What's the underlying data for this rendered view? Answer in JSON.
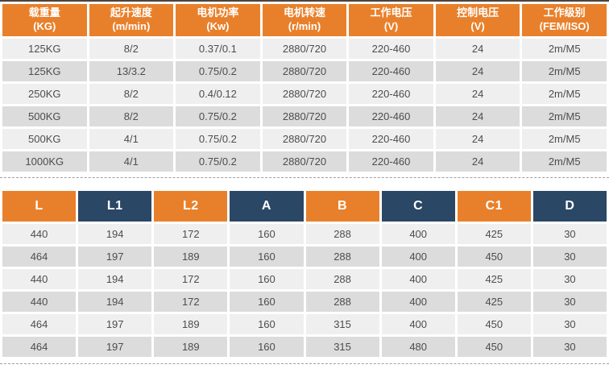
{
  "colors": {
    "orange": "#E8802B",
    "navy": "#2B4766",
    "row_light": "#EFEFEF",
    "row_dark": "#DCDCDC",
    "text": "#4D4D4D"
  },
  "spec_table": {
    "headers": [
      {
        "line1": "载重量",
        "line2": "(KG)"
      },
      {
        "line1": "起升速度",
        "line2": "(m/min)"
      },
      {
        "line1": "电机功率",
        "line2": "(Kw)"
      },
      {
        "line1": "电机转速",
        "line2": "(r/min)"
      },
      {
        "line1": "工作电压",
        "line2": "(V)"
      },
      {
        "line1": "控制电压",
        "line2": "(V)"
      },
      {
        "line1": "工作级别",
        "line2": "(FEM/ISO)"
      }
    ],
    "rows": [
      [
        "125KG",
        "8/2",
        "0.37/0.1",
        "2880/720",
        "220-460",
        "24",
        "2m/M5"
      ],
      [
        "125KG",
        "13/3.2",
        "0.75/0.2",
        "2880/720",
        "220-460",
        "24",
        "2m/M5"
      ],
      [
        "250KG",
        "8/2",
        "0.4/0.12",
        "2880/720",
        "220-460",
        "24",
        "2m/M5"
      ],
      [
        "500KG",
        "8/2",
        "0.75/0.2",
        "2880/720",
        "220-460",
        "24",
        "2m/M5"
      ],
      [
        "500KG",
        "4/1",
        "0.75/0.2",
        "2880/720",
        "220-460",
        "24",
        "2m/M5"
      ],
      [
        "1000KG",
        "4/1",
        "0.75/0.2",
        "2880/720",
        "220-460",
        "24",
        "2m/M5"
      ]
    ]
  },
  "dimension_table": {
    "headers": [
      "L",
      "L1",
      "L2",
      "A",
      "B",
      "C",
      "C1",
      "D"
    ],
    "rows": [
      [
        "440",
        "194",
        "172",
        "160",
        "288",
        "400",
        "425",
        "30"
      ],
      [
        "464",
        "197",
        "189",
        "160",
        "288",
        "400",
        "450",
        "30"
      ],
      [
        "440",
        "194",
        "172",
        "160",
        "288",
        "400",
        "425",
        "30"
      ],
      [
        "440",
        "194",
        "172",
        "160",
        "288",
        "400",
        "425",
        "30"
      ],
      [
        "464",
        "197",
        "189",
        "160",
        "315",
        "400",
        "450",
        "30"
      ],
      [
        "464",
        "197",
        "189",
        "160",
        "315",
        "480",
        "450",
        "30"
      ]
    ]
  }
}
